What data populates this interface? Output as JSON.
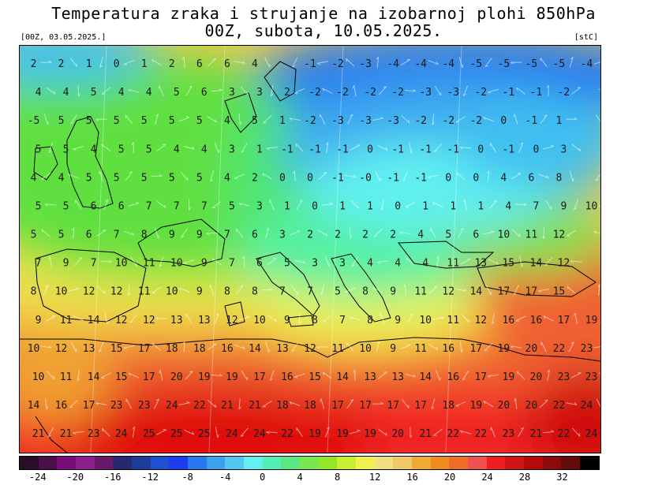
{
  "header": {
    "title_line1": "Temperatura zraka i strujanje na izobarnoj plohi 850hPa",
    "title_line2": "00Z, subota, 10.05.2025.",
    "run_info": "[00Z, 03.05.2025.]",
    "unit": "[stC]"
  },
  "colorbar": {
    "colors": [
      "#2a0d2a",
      "#4d0f4a",
      "#7a0c7a",
      "#8e1e8e",
      "#6a1868",
      "#282870",
      "#1c3c9a",
      "#1e50d2",
      "#1e3cf0",
      "#2878f0",
      "#3ca0f0",
      "#50c8f0",
      "#62f0f0",
      "#50f0b4",
      "#5ae682",
      "#7ae650",
      "#96e628",
      "#c8f032",
      "#f0f050",
      "#f0e082",
      "#f0c864",
      "#f0aa32",
      "#f08c1e",
      "#f06e28",
      "#f05050",
      "#f01e1e",
      "#d21414",
      "#b40a0a",
      "#8c0a0a",
      "#640a0a",
      "#000000"
    ],
    "tick_labels": [
      "-24",
      "-20",
      "-16",
      "-12",
      "-8",
      "-4",
      "0",
      "4",
      "8",
      "12",
      "16",
      "20",
      "24",
      "28",
      "32"
    ]
  },
  "map": {
    "temperature_rows": [
      [
        "2",
        "2",
        "1",
        "0",
        "1",
        "2",
        "6",
        "6",
        "4",
        "",
        "-1",
        "-2",
        "-3",
        "-4",
        "-4",
        "-4",
        "-5",
        "-5",
        "-5",
        "-5",
        "-4"
      ],
      [
        "4",
        "4",
        "5",
        "4",
        "4",
        "5",
        "6",
        "3",
        "3",
        "2",
        "-2",
        "-2",
        "-2",
        "-2",
        "-3",
        "-3",
        "-2",
        "-1",
        "-1",
        "-2",
        ""
      ],
      [
        "-5",
        "5",
        "5",
        "5",
        "5",
        "5",
        "5",
        "4",
        "5",
        "1",
        "-2",
        "-3",
        "-3",
        "-3",
        "-2",
        "-2",
        "-2",
        "0",
        "-1",
        "1",
        ""
      ],
      [
        "5",
        "5",
        "4",
        "5",
        "5",
        "4",
        "4",
        "3",
        "1",
        "-1",
        "-1",
        "-1",
        "0",
        "-1",
        "-1",
        "-1",
        "0",
        "-1",
        "0",
        "3",
        ""
      ],
      [
        "4",
        "4",
        "5",
        "5",
        "5",
        "5",
        "5",
        "4",
        "2",
        "0",
        "0",
        "-1",
        "-0",
        "-1",
        "-1",
        "0",
        "0",
        "4",
        "6",
        "8",
        ""
      ],
      [
        "5",
        "5",
        "6",
        "6",
        "7",
        "7",
        "7",
        "5",
        "3",
        "1",
        "0",
        "1",
        "1",
        "0",
        "1",
        "1",
        "1",
        "4",
        "7",
        "9",
        "10"
      ],
      [
        "5",
        "5",
        "6",
        "7",
        "8",
        "9",
        "9",
        "7",
        "6",
        "3",
        "2",
        "2",
        "2",
        "2",
        "4",
        "5",
        "6",
        "10",
        "11",
        "12",
        ""
      ],
      [
        "7",
        "9",
        "7",
        "10",
        "11",
        "10",
        "9",
        "7",
        "6",
        "5",
        "3",
        "3",
        "4",
        "4",
        "4",
        "11",
        "13",
        "15",
        "14",
        "12",
        ""
      ],
      [
        "8",
        "10",
        "12",
        "12",
        "11",
        "10",
        "9",
        "8",
        "8",
        "7",
        "7",
        "5",
        "8",
        "9",
        "11",
        "12",
        "14",
        "17",
        "17",
        "15",
        ""
      ],
      [
        "9",
        "11",
        "14",
        "12",
        "12",
        "13",
        "13",
        "12",
        "10",
        "9",
        "8",
        "7",
        "8",
        "9",
        "10",
        "11",
        "12",
        "16",
        "16",
        "17",
        "19"
      ],
      [
        "10",
        "12",
        "13",
        "15",
        "17",
        "18",
        "18",
        "16",
        "14",
        "13",
        "12",
        "11",
        "10",
        "9",
        "11",
        "16",
        "17",
        "19",
        "20",
        "22",
        "23"
      ],
      [
        "10",
        "11",
        "14",
        "15",
        "17",
        "20",
        "19",
        "19",
        "17",
        "16",
        "15",
        "14",
        "13",
        "13",
        "14",
        "16",
        "17",
        "19",
        "20",
        "23",
        "23"
      ],
      [
        "14",
        "16",
        "17",
        "23",
        "23",
        "24",
        "22",
        "21",
        "21",
        "18",
        "18",
        "17",
        "17",
        "17",
        "17",
        "18",
        "19",
        "20",
        "20",
        "22",
        "24"
      ],
      [
        "21",
        "21",
        "23",
        "24",
        "25",
        "25",
        "25",
        "24",
        "24",
        "22",
        "19",
        "19",
        "19",
        "20",
        "21",
        "22",
        "22",
        "23",
        "21",
        "22",
        "24"
      ]
    ]
  }
}
